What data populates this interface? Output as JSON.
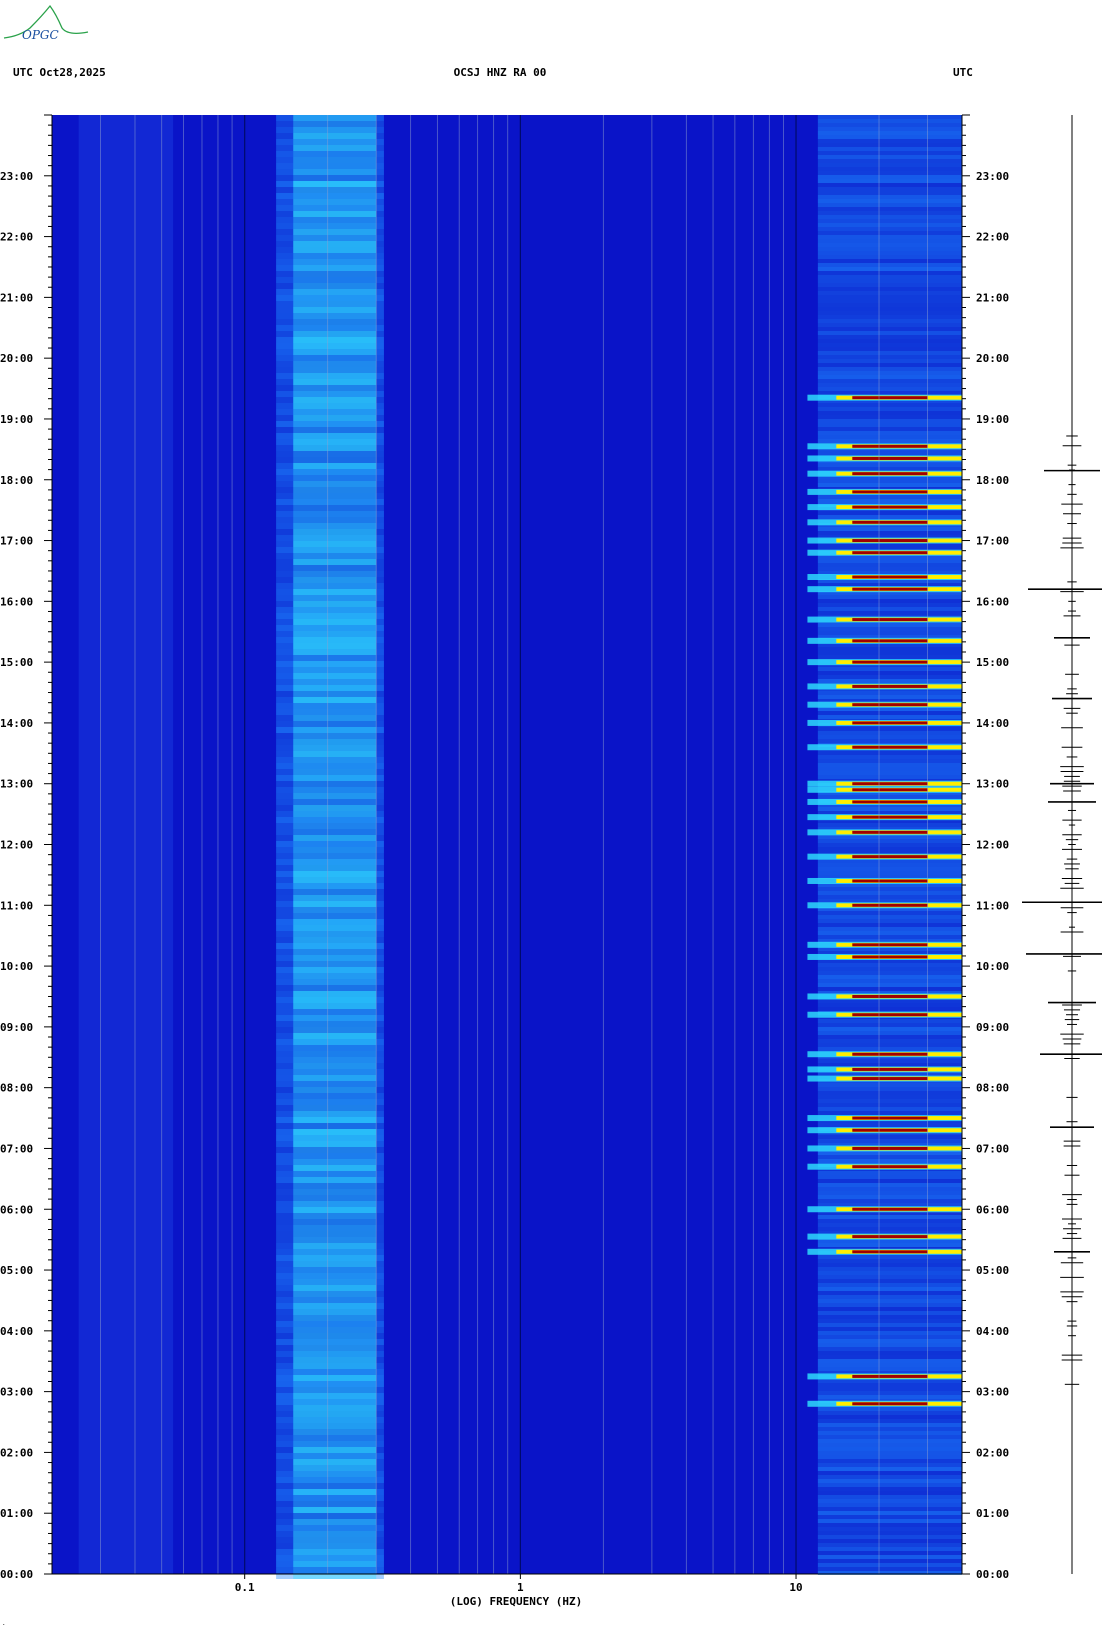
{
  "header": {
    "left": "UTC  Oct28,2025",
    "center": "OCSJ HNZ RA 00",
    "right": "UTC"
  },
  "logo": {
    "text": "OPGC",
    "color": "#2aa24a"
  },
  "colors": {
    "background": "#0a14c8",
    "mid": "#1e88ff",
    "strong": "#30e6ff",
    "hot": "#ffee00",
    "peak": "#a00000"
  },
  "chart_data": {
    "type": "heatmap",
    "title": "OCSJ HNZ RA 00",
    "xlabel": "(LOG) FREQUENCY (HZ)",
    "ylabel": "UTC",
    "x_scale": "log",
    "xlim": [
      0.02,
      40
    ],
    "x_ticks": [
      {
        "value": 0.1,
        "label": "0.1"
      },
      {
        "value": 1,
        "label": "1"
      },
      {
        "value": 10,
        "label": "10"
      }
    ],
    "ylim": [
      "00:00",
      "24:00"
    ],
    "y_ticks": [
      "00:00",
      "01:00",
      "02:00",
      "03:00",
      "04:00",
      "05:00",
      "06:00",
      "07:00",
      "08:00",
      "09:00",
      "10:00",
      "11:00",
      "12:00",
      "13:00",
      "14:00",
      "15:00",
      "16:00",
      "17:00",
      "18:00",
      "19:00",
      "20:00",
      "21:00",
      "22:00",
      "23:00"
    ],
    "bands": [
      {
        "name": "microseism",
        "freq_range": [
          0.15,
          0.3
        ],
        "time_range": [
          0,
          24
        ],
        "level": "strong"
      },
      {
        "name": "cultural_noise",
        "freq_range": [
          12,
          35
        ],
        "time_range": [
          0,
          24
        ],
        "level": "medium"
      }
    ],
    "events_hours": [
      2.8,
      3.25,
      5.3,
      5.55,
      6.0,
      6.7,
      7.0,
      7.3,
      7.5,
      8.15,
      8.3,
      8.55,
      9.2,
      9.5,
      10.15,
      10.35,
      11.0,
      11.4,
      11.8,
      12.2,
      12.45,
      12.7,
      12.9,
      13.0,
      13.6,
      14.0,
      14.3,
      14.6,
      15.0,
      15.35,
      15.7,
      16.2,
      16.4,
      16.8,
      17.0,
      17.3,
      17.55,
      17.8,
      18.1,
      18.35,
      18.55,
      19.35
    ],
    "seismogram_spikes": [
      {
        "hour": 18.15,
        "amp": 0.45
      },
      {
        "hour": 16.2,
        "amp": 0.85
      },
      {
        "hour": 15.4,
        "amp": 0.2
      },
      {
        "hour": 14.4,
        "amp": 0.25
      },
      {
        "hour": 13.0,
        "amp": 0.3
      },
      {
        "hour": 12.7,
        "amp": 0.35
      },
      {
        "hour": 11.05,
        "amp": 1.0
      },
      {
        "hour": 10.2,
        "amp": 0.9
      },
      {
        "hour": 9.4,
        "amp": 0.35
      },
      {
        "hour": 8.55,
        "amp": 0.55
      },
      {
        "hour": 7.35,
        "amp": 0.3
      },
      {
        "hour": 5.3,
        "amp": 0.2
      }
    ]
  }
}
